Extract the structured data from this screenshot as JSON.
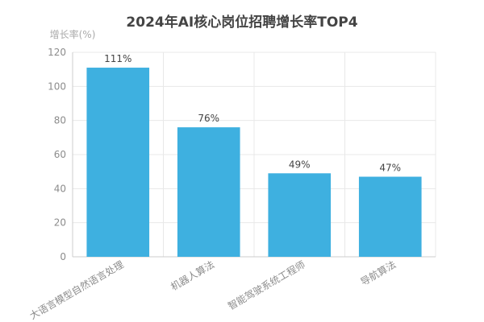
{
  "chart_data": {
    "type": "bar",
    "title": "2024年AI核心岗位招聘增长率TOP4",
    "ylabel": "增长率(%)",
    "xlabel": "",
    "categories": [
      "大语言模型自然语言处理",
      "机器人算法",
      "智能驾驶系统工程师",
      "导航算法"
    ],
    "values": [
      111,
      76,
      49,
      47
    ],
    "value_labels": [
      "111%",
      "76%",
      "49%",
      "47%"
    ],
    "ylim": [
      0,
      120
    ],
    "yticks": [
      0,
      20,
      40,
      60,
      80,
      100,
      120
    ],
    "grid": true,
    "bar_color": "#3eb0e0",
    "grid_color": "#e8e8e8",
    "axis_color": "#cccccc"
  }
}
